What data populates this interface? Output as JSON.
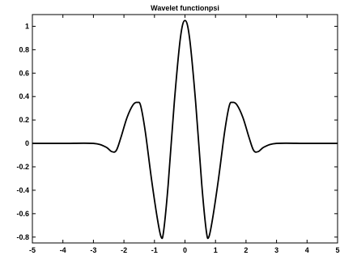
{
  "chart_data": {
    "type": "line",
    "title": "Wavelet functionpsi",
    "xlabel": "",
    "ylabel": "",
    "xlim": [
      -5,
      5
    ],
    "ylim": [
      -0.85,
      1.1
    ],
    "grid": false,
    "xticks": [
      -5,
      -4,
      -3,
      -2,
      -1,
      0,
      1,
      2,
      3,
      4,
      5
    ],
    "yticks": [
      1,
      0.8,
      0.6,
      0.4,
      0.2,
      0,
      -0.2,
      -0.4,
      -0.6,
      -0.8
    ],
    "xtick_labels": [
      "-5",
      "-4",
      "-3",
      "-2",
      "-1",
      "0",
      "1",
      "2",
      "3",
      "4",
      "5"
    ],
    "ytick_labels": [
      "1",
      "0.8",
      "0.6",
      "0.4",
      "0.2",
      "0",
      "-0.2",
      "-0.4",
      "-0.6",
      "-0.8"
    ],
    "series": [
      {
        "color": "#000000",
        "x": [
          -5,
          -4,
          -3,
          -2.6,
          -2.4,
          -2.25,
          -2.1,
          -1.9,
          -1.7,
          -1.55,
          -1.45,
          -1.3,
          -1.1,
          -0.9,
          -0.78,
          -0.7,
          -0.55,
          -0.35,
          -0.15,
          0,
          0.15,
          0.35,
          0.55,
          0.7,
          0.78,
          0.9,
          1.1,
          1.3,
          1.45,
          1.55,
          1.7,
          1.9,
          2.1,
          2.25,
          2.4,
          2.6,
          3,
          4,
          5
        ],
        "y": [
          0,
          0,
          0,
          -0.03,
          -0.07,
          -0.06,
          0.05,
          0.22,
          0.33,
          0.35,
          0.32,
          0.1,
          -0.3,
          -0.65,
          -0.8,
          -0.75,
          -0.35,
          0.35,
          0.9,
          1.05,
          0.9,
          0.35,
          -0.35,
          -0.75,
          -0.8,
          -0.65,
          -0.3,
          0.1,
          0.32,
          0.35,
          0.33,
          0.22,
          0.05,
          -0.06,
          -0.07,
          -0.03,
          0,
          0,
          0
        ]
      }
    ]
  }
}
